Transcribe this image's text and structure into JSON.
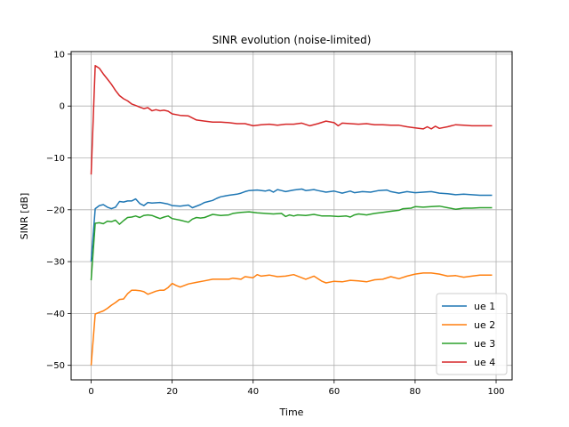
{
  "chart_data": {
    "type": "line",
    "title": "SINR evolution (noise-limited)",
    "xlabel": "Time",
    "ylabel": "SINR [dB]",
    "xlim": [
      -4.95,
      103.95
    ],
    "ylim": [
      -52.8,
      10.5
    ],
    "xticks": [
      0,
      20,
      40,
      60,
      80,
      100
    ],
    "yticks": [
      10,
      0,
      -10,
      -20,
      -30,
      -40,
      -50
    ],
    "xtick_labels": [
      "0",
      "20",
      "40",
      "60",
      "80",
      "100"
    ],
    "ytick_labels": [
      "10",
      "0",
      "−10",
      "−20",
      "−30",
      "−40",
      "−50"
    ],
    "grid": true,
    "legend_placement": "lower-right",
    "series": [
      {
        "name": "ue 1",
        "color": "#1f77b4",
        "points": [
          [
            0,
            -30
          ],
          [
            1,
            -19.8
          ],
          [
            2,
            -19.2
          ],
          [
            3,
            -19.0
          ],
          [
            4,
            -19.5
          ],
          [
            5,
            -19.8
          ],
          [
            6,
            -19.5
          ],
          [
            7,
            -18.4
          ],
          [
            8,
            -18.5
          ],
          [
            9,
            -18.3
          ],
          [
            10,
            -18.3
          ],
          [
            11,
            -17.9
          ],
          [
            12,
            -18.8
          ],
          [
            13,
            -19.2
          ],
          [
            14,
            -18.6
          ],
          [
            15,
            -18.7
          ],
          [
            17,
            -18.6
          ],
          [
            19,
            -18.9
          ],
          [
            20,
            -19.2
          ],
          [
            22,
            -19.3
          ],
          [
            24,
            -19.1
          ],
          [
            25,
            -19.6
          ],
          [
            27,
            -19.0
          ],
          [
            28,
            -18.6
          ],
          [
            30,
            -18.2
          ],
          [
            31,
            -17.8
          ],
          [
            32,
            -17.5
          ],
          [
            34,
            -17.2
          ],
          [
            36,
            -17.0
          ],
          [
            37,
            -16.8
          ],
          [
            38,
            -16.5
          ],
          [
            39,
            -16.3
          ],
          [
            41,
            -16.2
          ],
          [
            43,
            -16.4
          ],
          [
            44,
            -16.2
          ],
          [
            45,
            -16.6
          ],
          [
            46,
            -16.1
          ],
          [
            47,
            -16.3
          ],
          [
            48,
            -16.5
          ],
          [
            50,
            -16.2
          ],
          [
            52,
            -16.0
          ],
          [
            53,
            -16.3
          ],
          [
            55,
            -16.1
          ],
          [
            56,
            -16.3
          ],
          [
            58,
            -16.6
          ],
          [
            60,
            -16.4
          ],
          [
            62,
            -16.8
          ],
          [
            64,
            -16.4
          ],
          [
            65,
            -16.7
          ],
          [
            67,
            -16.5
          ],
          [
            69,
            -16.6
          ],
          [
            71,
            -16.3
          ],
          [
            73,
            -16.2
          ],
          [
            74,
            -16.5
          ],
          [
            76,
            -16.8
          ],
          [
            78,
            -16.5
          ],
          [
            80,
            -16.7
          ],
          [
            82,
            -16.6
          ],
          [
            84,
            -16.5
          ],
          [
            86,
            -16.8
          ],
          [
            88,
            -16.9
          ],
          [
            90,
            -17.1
          ],
          [
            92,
            -17.0
          ],
          [
            94,
            -17.1
          ],
          [
            96,
            -17.2
          ],
          [
            99,
            -17.2
          ]
        ]
      },
      {
        "name": "ue 2",
        "color": "#ff7f0e",
        "points": [
          [
            0,
            -50
          ],
          [
            1,
            -40.1
          ],
          [
            2,
            -39.8
          ],
          [
            3,
            -39.5
          ],
          [
            4,
            -39.0
          ],
          [
            5,
            -38.4
          ],
          [
            6,
            -37.9
          ],
          [
            7,
            -37.3
          ],
          [
            8,
            -37.2
          ],
          [
            9,
            -36.2
          ],
          [
            10,
            -35.5
          ],
          [
            11,
            -35.5
          ],
          [
            12,
            -35.6
          ],
          [
            13,
            -35.8
          ],
          [
            14,
            -36.3
          ],
          [
            15,
            -36.0
          ],
          [
            16,
            -35.7
          ],
          [
            17,
            -35.5
          ],
          [
            18,
            -35.5
          ],
          [
            19,
            -35.0
          ],
          [
            20,
            -34.2
          ],
          [
            21,
            -34.6
          ],
          [
            22,
            -34.9
          ],
          [
            23,
            -34.6
          ],
          [
            24,
            -34.3
          ],
          [
            26,
            -34.0
          ],
          [
            28,
            -33.7
          ],
          [
            30,
            -33.4
          ],
          [
            32,
            -33.4
          ],
          [
            34,
            -33.4
          ],
          [
            35,
            -33.2
          ],
          [
            37,
            -33.4
          ],
          [
            38,
            -32.9
          ],
          [
            40,
            -33.1
          ],
          [
            41,
            -32.5
          ],
          [
            42,
            -32.8
          ],
          [
            44,
            -32.6
          ],
          [
            46,
            -32.9
          ],
          [
            48,
            -32.8
          ],
          [
            50,
            -32.5
          ],
          [
            51,
            -32.8
          ],
          [
            53,
            -33.4
          ],
          [
            55,
            -32.8
          ],
          [
            57,
            -33.8
          ],
          [
            58,
            -34.1
          ],
          [
            60,
            -33.8
          ],
          [
            62,
            -33.9
          ],
          [
            64,
            -33.6
          ],
          [
            66,
            -33.7
          ],
          [
            68,
            -33.9
          ],
          [
            70,
            -33.5
          ],
          [
            72,
            -33.4
          ],
          [
            74,
            -32.9
          ],
          [
            76,
            -33.3
          ],
          [
            78,
            -32.8
          ],
          [
            80,
            -32.4
          ],
          [
            82,
            -32.2
          ],
          [
            84,
            -32.2
          ],
          [
            86,
            -32.4
          ],
          [
            88,
            -32.8
          ],
          [
            90,
            -32.7
          ],
          [
            92,
            -33.0
          ],
          [
            94,
            -32.8
          ],
          [
            96,
            -32.6
          ],
          [
            99,
            -32.6
          ]
        ]
      },
      {
        "name": "ue 3",
        "color": "#2ca02c",
        "points": [
          [
            0,
            -33.6
          ],
          [
            1,
            -22.6
          ],
          [
            2,
            -22.5
          ],
          [
            3,
            -22.7
          ],
          [
            4,
            -22.2
          ],
          [
            5,
            -22.3
          ],
          [
            6,
            -22.0
          ],
          [
            7,
            -22.8
          ],
          [
            8,
            -22.1
          ],
          [
            9,
            -21.5
          ],
          [
            10,
            -21.4
          ],
          [
            11,
            -21.2
          ],
          [
            12,
            -21.5
          ],
          [
            13,
            -21.1
          ],
          [
            14,
            -21.0
          ],
          [
            15,
            -21.1
          ],
          [
            16,
            -21.4
          ],
          [
            17,
            -21.7
          ],
          [
            18,
            -21.4
          ],
          [
            19,
            -21.2
          ],
          [
            20,
            -21.7
          ],
          [
            22,
            -22.0
          ],
          [
            24,
            -22.4
          ],
          [
            25,
            -21.8
          ],
          [
            26,
            -21.5
          ],
          [
            27,
            -21.6
          ],
          [
            28,
            -21.5
          ],
          [
            30,
            -20.9
          ],
          [
            32,
            -21.1
          ],
          [
            34,
            -21.0
          ],
          [
            35,
            -20.7
          ],
          [
            37,
            -20.5
          ],
          [
            39,
            -20.4
          ],
          [
            41,
            -20.6
          ],
          [
            43,
            -20.7
          ],
          [
            45,
            -20.8
          ],
          [
            47,
            -20.7
          ],
          [
            48,
            -21.3
          ],
          [
            49,
            -21.0
          ],
          [
            50,
            -21.2
          ],
          [
            51,
            -21.0
          ],
          [
            53,
            -21.1
          ],
          [
            55,
            -20.9
          ],
          [
            57,
            -21.2
          ],
          [
            59,
            -21.2
          ],
          [
            61,
            -21.3
          ],
          [
            63,
            -21.2
          ],
          [
            64,
            -21.4
          ],
          [
            65,
            -21.0
          ],
          [
            66,
            -20.8
          ],
          [
            67,
            -20.9
          ],
          [
            68,
            -21.0
          ],
          [
            70,
            -20.7
          ],
          [
            72,
            -20.5
          ],
          [
            74,
            -20.3
          ],
          [
            76,
            -20.1
          ],
          [
            77,
            -19.8
          ],
          [
            79,
            -19.7
          ],
          [
            80,
            -19.4
          ],
          [
            82,
            -19.5
          ],
          [
            84,
            -19.4
          ],
          [
            86,
            -19.3
          ],
          [
            88,
            -19.6
          ],
          [
            90,
            -19.9
          ],
          [
            92,
            -19.7
          ],
          [
            94,
            -19.7
          ],
          [
            96,
            -19.6
          ],
          [
            99,
            -19.6
          ]
        ]
      },
      {
        "name": "ue 4",
        "color": "#d62728",
        "points": [
          [
            0,
            -13.2
          ],
          [
            1,
            7.8
          ],
          [
            2,
            7.3
          ],
          [
            3,
            6.2
          ],
          [
            4,
            5.2
          ],
          [
            5,
            4.2
          ],
          [
            6,
            3.0
          ],
          [
            7,
            2.0
          ],
          [
            8,
            1.4
          ],
          [
            9,
            1.0
          ],
          [
            10,
            0.4
          ],
          [
            11,
            0.1
          ],
          [
            12,
            -0.2
          ],
          [
            13,
            -0.5
          ],
          [
            14,
            -0.3
          ],
          [
            15,
            -0.9
          ],
          [
            16,
            -0.7
          ],
          [
            17,
            -0.9
          ],
          [
            18,
            -0.8
          ],
          [
            19,
            -1.0
          ],
          [
            20,
            -1.5
          ],
          [
            22,
            -1.8
          ],
          [
            24,
            -1.9
          ],
          [
            26,
            -2.7
          ],
          [
            28,
            -2.9
          ],
          [
            30,
            -3.1
          ],
          [
            32,
            -3.1
          ],
          [
            34,
            -3.2
          ],
          [
            36,
            -3.4
          ],
          [
            38,
            -3.4
          ],
          [
            40,
            -3.8
          ],
          [
            42,
            -3.6
          ],
          [
            44,
            -3.5
          ],
          [
            46,
            -3.7
          ],
          [
            48,
            -3.5
          ],
          [
            50,
            -3.5
          ],
          [
            52,
            -3.3
          ],
          [
            54,
            -3.8
          ],
          [
            56,
            -3.4
          ],
          [
            58,
            -2.9
          ],
          [
            60,
            -3.2
          ],
          [
            61,
            -3.8
          ],
          [
            62,
            -3.3
          ],
          [
            64,
            -3.4
          ],
          [
            66,
            -3.5
          ],
          [
            68,
            -3.4
          ],
          [
            70,
            -3.6
          ],
          [
            72,
            -3.6
          ],
          [
            74,
            -3.7
          ],
          [
            76,
            -3.7
          ],
          [
            78,
            -4.0
          ],
          [
            80,
            -4.2
          ],
          [
            82,
            -4.4
          ],
          [
            83,
            -4.0
          ],
          [
            84,
            -4.4
          ],
          [
            85,
            -3.9
          ],
          [
            86,
            -4.3
          ],
          [
            88,
            -4.0
          ],
          [
            90,
            -3.6
          ],
          [
            92,
            -3.7
          ],
          [
            94,
            -3.8
          ],
          [
            96,
            -3.8
          ],
          [
            99,
            -3.8
          ]
        ]
      }
    ]
  }
}
